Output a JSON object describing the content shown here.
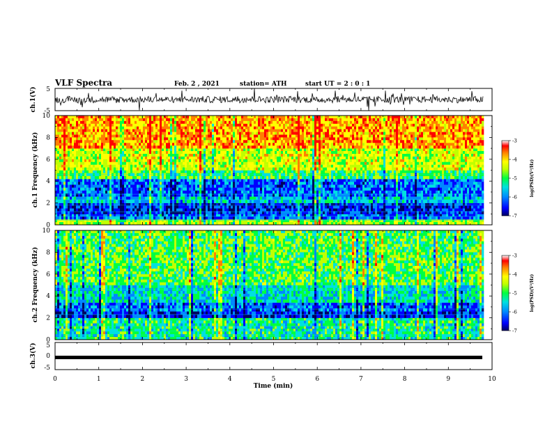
{
  "header": {
    "title": "VLF Spectra",
    "date": "Feb. 2 , 2021",
    "station": "station= ATH",
    "start": "start UT = 2 : 0 : 1"
  },
  "chart_data": [
    {
      "type": "line",
      "panel": "ch1-waveform",
      "ylabel": "ch.1(V)",
      "ylim": [
        -5,
        5
      ],
      "yticks": [
        "5",
        "-5"
      ],
      "x_unit": "min",
      "xlim": [
        0,
        10
      ],
      "data_extent_min": 9.8,
      "description_values": {
        "typical_level_V": 0,
        "typical_amplitude_V": 1.5,
        "max_spike_V": 5
      }
    },
    {
      "type": "heatmap",
      "panel": "ch1-spectrogram",
      "ylabel": "ch.1 Frequency (kHz)",
      "ylim": [
        0,
        10
      ],
      "yticks": [
        "0",
        "2",
        "4",
        "6",
        "8",
        "10"
      ],
      "xlim": [
        0,
        10
      ],
      "colorbar": {
        "label": "log(PSD)(V²/Hz)",
        "range": [
          -7,
          -3
        ],
        "ticks": [
          "-3",
          "-4",
          "-5",
          "-6",
          "-7"
        ]
      },
      "band_levels": [
        {
          "from_khz": 0,
          "to_khz": 0.5,
          "log_psd": -4.6
        },
        {
          "from_khz": 0.5,
          "to_khz": 1.0,
          "log_psd": -6.0
        },
        {
          "from_khz": 1.0,
          "to_khz": 2.0,
          "log_psd": -6.3
        },
        {
          "from_khz": 2.0,
          "to_khz": 2.6,
          "log_psd": -5.6
        },
        {
          "from_khz": 2.6,
          "to_khz": 4.2,
          "log_psd": -6.0
        },
        {
          "from_khz": 4.2,
          "to_khz": 5.0,
          "log_psd": -5.0
        },
        {
          "from_khz": 5.0,
          "to_khz": 7.0,
          "log_psd": -4.4
        },
        {
          "from_khz": 7.0,
          "to_khz": 10.0,
          "log_psd": -3.8
        }
      ]
    },
    {
      "type": "heatmap",
      "panel": "ch2-spectrogram",
      "ylabel": "ch.2 Frequency (kHz)",
      "ylim": [
        0,
        10
      ],
      "yticks": [
        "0",
        "2",
        "4",
        "6",
        "8",
        "10"
      ],
      "xlim": [
        0,
        10
      ],
      "colorbar": {
        "label": "log(PSD)(V²/Hz)",
        "range": [
          -7,
          -3
        ],
        "ticks": [
          "-3",
          "-4",
          "-5",
          "-6",
          "-7"
        ]
      },
      "band_levels": [
        {
          "from_khz": 0,
          "to_khz": 2.0,
          "log_psd": -5.2
        },
        {
          "from_khz": 2.0,
          "to_khz": 2.6,
          "log_psd": -6.3
        },
        {
          "from_khz": 2.6,
          "to_khz": 3.4,
          "log_psd": -6.0
        },
        {
          "from_khz": 3.4,
          "to_khz": 5.0,
          "log_psd": -5.4
        },
        {
          "from_khz": 5.0,
          "to_khz": 10.0,
          "log_psd": -4.9
        }
      ]
    },
    {
      "type": "line",
      "panel": "ch3-waveform",
      "ylabel": "ch.3(V)",
      "ylim": [
        -5,
        5
      ],
      "yticks": [
        "5",
        "0",
        "-5"
      ],
      "xlim": [
        0,
        10
      ],
      "level_V": -0.5,
      "xlabel": "Time (min)",
      "xticks": [
        "0",
        "1",
        "2",
        "3",
        "4",
        "5",
        "6",
        "7",
        "8",
        "9",
        "10"
      ]
    }
  ],
  "colors": {
    "scale": [
      "#000060",
      "#0000ff",
      "#0088ff",
      "#00e0e0",
      "#00ff40",
      "#c0ff00",
      "#ffff00",
      "#ff8000",
      "#ff0000"
    ],
    "axis": "#000000"
  }
}
